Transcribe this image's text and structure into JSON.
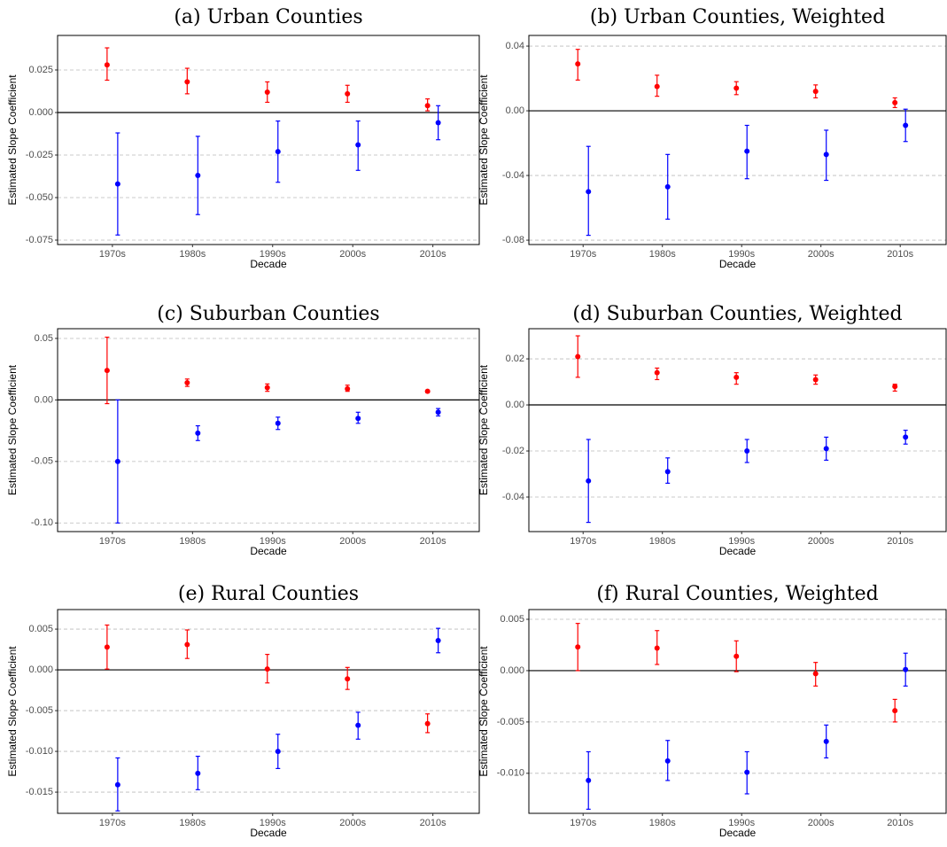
{
  "chart_data": [
    {
      "type": "errorbar",
      "title": "(a) Urban Counties",
      "xlabel": "Decade",
      "ylabel": "Estimated Slope Coefficient",
      "categories": [
        "1970s",
        "1980s",
        "1990s",
        "2000s",
        "2010s"
      ],
      "series": [
        {
          "color": "#ff0000",
          "values": [
            0.028,
            0.018,
            0.012,
            0.011,
            0.004
          ],
          "lower": [
            0.019,
            0.011,
            0.006,
            0.006,
            0.001
          ],
          "upper": [
            0.038,
            0.026,
            0.018,
            0.016,
            0.008
          ]
        },
        {
          "color": "#0000ff",
          "values": [
            -0.042,
            -0.037,
            -0.023,
            -0.019,
            -0.006
          ],
          "lower": [
            -0.072,
            -0.06,
            -0.041,
            -0.034,
            -0.016
          ],
          "upper": [
            -0.012,
            -0.014,
            -0.005,
            -0.005,
            0.004
          ]
        }
      ],
      "ylim": [
        -0.0776,
        0.0453
      ],
      "yticks": [
        {
          "value": 0.025,
          "label": "0.025"
        },
        {
          "value": 0,
          "label": "0.000"
        },
        {
          "value": -0.025,
          "label": "-0.025"
        },
        {
          "value": -0.05,
          "label": "-0.050"
        },
        {
          "value": -0.075,
          "label": "-0.075"
        }
      ],
      "hline": 0,
      "grid": true
    },
    {
      "type": "errorbar",
      "title": "(b) Urban Counties, Weighted",
      "xlabel": "Decade",
      "ylabel": "Estimated Slope Coefficient",
      "categories": [
        "1970s",
        "1980s",
        "1990s",
        "2000s",
        "2010s"
      ],
      "series": [
        {
          "color": "#ff0000",
          "values": [
            0.029,
            0.015,
            0.014,
            0.012,
            0.005
          ],
          "lower": [
            0.019,
            0.009,
            0.01,
            0.008,
            0.002
          ],
          "upper": [
            0.038,
            0.022,
            0.018,
            0.016,
            0.008
          ]
        },
        {
          "color": "#0000ff",
          "values": [
            -0.05,
            -0.047,
            -0.025,
            -0.027,
            -0.009
          ],
          "lower": [
            -0.077,
            -0.067,
            -0.042,
            -0.043,
            -0.019
          ],
          "upper": [
            -0.022,
            -0.027,
            -0.009,
            -0.012,
            0.001
          ]
        }
      ],
      "ylim": [
        -0.0827,
        0.0466
      ],
      "yticks": [
        {
          "value": 0.04,
          "label": "0.04"
        },
        {
          "value": 0,
          "label": "0.00"
        },
        {
          "value": -0.04,
          "label": "-0.04"
        },
        {
          "value": -0.08,
          "label": "-0.08"
        }
      ],
      "hline": 0,
      "grid": true
    },
    {
      "type": "errorbar",
      "title": "(c) Suburban Counties",
      "xlabel": "Decade",
      "ylabel": "Estimated Slope Coefficient",
      "categories": [
        "1970s",
        "1980s",
        "1990s",
        "2000s",
        "2010s"
      ],
      "series": [
        {
          "color": "#ff0000",
          "values": [
            0.024,
            0.014,
            0.01,
            0.009,
            0.007
          ],
          "lower": [
            -0.003,
            0.011,
            0.007,
            0.007,
            0.006
          ],
          "upper": [
            0.051,
            0.017,
            0.013,
            0.012,
            0.008
          ]
        },
        {
          "color": "#0000ff",
          "values": [
            -0.05,
            -0.027,
            -0.019,
            -0.015,
            -0.01
          ],
          "lower": [
            -0.1,
            -0.033,
            -0.024,
            -0.019,
            -0.013
          ],
          "upper": [
            0.0,
            -0.021,
            -0.014,
            -0.01,
            -0.007
          ]
        }
      ],
      "ylim": [
        -0.107,
        0.0579
      ],
      "yticks": [
        {
          "value": 0.05,
          "label": "0.05"
        },
        {
          "value": 0,
          "label": "0.00"
        },
        {
          "value": -0.05,
          "label": "-0.05"
        },
        {
          "value": -0.1,
          "label": "-0.10"
        }
      ],
      "hline": 0,
      "grid": true
    },
    {
      "type": "errorbar",
      "title": "(d) Suburban Counties, Weighted",
      "xlabel": "Decade",
      "ylabel": "Estimated Slope Coefficient",
      "categories": [
        "1970s",
        "1980s",
        "1990s",
        "2000s",
        "2010s"
      ],
      "series": [
        {
          "color": "#ff0000",
          "values": [
            0.021,
            0.014,
            0.012,
            0.011,
            0.008
          ],
          "lower": [
            0.012,
            0.011,
            0.009,
            0.009,
            0.006
          ],
          "upper": [
            0.03,
            0.016,
            0.014,
            0.013,
            0.009
          ]
        },
        {
          "color": "#0000ff",
          "values": [
            -0.033,
            -0.029,
            -0.02,
            -0.019,
            -0.014
          ],
          "lower": [
            -0.051,
            -0.034,
            -0.025,
            -0.024,
            -0.017
          ],
          "upper": [
            -0.015,
            -0.023,
            -0.015,
            -0.014,
            -0.011
          ]
        }
      ],
      "ylim": [
        -0.055,
        0.0331
      ],
      "yticks": [
        {
          "value": 0.02,
          "label": "0.02"
        },
        {
          "value": 0,
          "label": "0.00"
        },
        {
          "value": -0.02,
          "label": "-0.02"
        },
        {
          "value": -0.04,
          "label": "-0.04"
        }
      ],
      "hline": 0,
      "grid": true
    },
    {
      "type": "errorbar",
      "title": "(e) Rural Counties",
      "xlabel": "Decade",
      "ylabel": "Estimated Slope Coefficient",
      "categories": [
        "1970s",
        "1980s",
        "1990s",
        "2000s",
        "2010s"
      ],
      "series": [
        {
          "color": "#ff0000",
          "values": [
            0.0028,
            0.0031,
            0.0001,
            -0.0011,
            -0.0066
          ],
          "lower": [
            0.0001,
            0.0014,
            -0.0016,
            -0.0024,
            -0.0077
          ],
          "upper": [
            0.0055,
            0.0049,
            0.0019,
            0.0003,
            -0.0054
          ]
        },
        {
          "color": "#0000ff",
          "values": [
            -0.0141,
            -0.0127,
            -0.01,
            -0.0068,
            0.0036
          ],
          "lower": [
            -0.0173,
            -0.0147,
            -0.0121,
            -0.0085,
            0.0021
          ],
          "upper": [
            -0.0108,
            -0.0106,
            -0.0079,
            -0.0052,
            0.0051
          ]
        }
      ],
      "ylim": [
        -0.0176,
        0.0074
      ],
      "yticks": [
        {
          "value": 0.005,
          "label": "0.005"
        },
        {
          "value": 0,
          "label": "0.000"
        },
        {
          "value": -0.005,
          "label": "-0.005"
        },
        {
          "value": -0.01,
          "label": "-0.010"
        },
        {
          "value": -0.015,
          "label": "-0.015"
        }
      ],
      "hline": 0,
      "grid": true
    },
    {
      "type": "errorbar",
      "title": "(f) Rural Counties, Weighted",
      "xlabel": "Decade",
      "ylabel": "Estimated Slope Coefficient",
      "categories": [
        "1970s",
        "1980s",
        "1990s",
        "2000s",
        "2010s"
      ],
      "series": [
        {
          "color": "#ff0000",
          "values": [
            0.0023,
            0.0022,
            0.0014,
            -0.0003,
            -0.0039
          ],
          "lower": [
            0.0,
            0.0006,
            -0.0001,
            -0.0015,
            -0.005
          ],
          "upper": [
            0.0046,
            0.0039,
            0.0029,
            0.0008,
            -0.0028
          ]
        },
        {
          "color": "#0000ff",
          "values": [
            -0.0107,
            -0.0088,
            -0.0099,
            -0.0069,
            0.0001
          ],
          "lower": [
            -0.0135,
            -0.0107,
            -0.012,
            -0.0085,
            -0.0015
          ],
          "upper": [
            -0.0079,
            -0.0068,
            -0.0079,
            -0.0053,
            0.0017
          ]
        }
      ],
      "ylim": [
        -0.0139,
        0.00595
      ],
      "yticks": [
        {
          "value": 0.005,
          "label": "0.005"
        },
        {
          "value": 0,
          "label": "0.000"
        },
        {
          "value": -0.005,
          "label": "-0.005"
        },
        {
          "value": -0.01,
          "label": "-0.010"
        }
      ],
      "hline": 0,
      "grid": true
    }
  ]
}
